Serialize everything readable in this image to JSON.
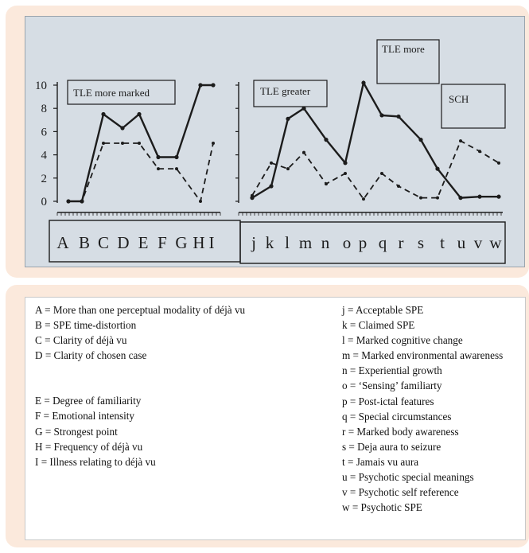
{
  "chart_data": {
    "type": "line",
    "panels": [
      {
        "categories": [
          "A",
          "B",
          "C",
          "D",
          "E",
          "F",
          "G",
          "H",
          "I"
        ],
        "y_ticks": [
          0,
          2,
          4,
          6,
          8,
          10
        ],
        "ylim": [
          0,
          10
        ],
        "annotations": [
          "TLE more marked"
        ],
        "series": [
          {
            "style": "solid",
            "values": [
              0,
              0,
              7.5,
              6.3,
              7.5,
              3.8,
              3.8,
              10,
              10
            ]
          },
          {
            "style": "dashed",
            "values": [
              0,
              0,
              5,
              5,
              5,
              2.8,
              2.8,
              0,
              5
            ]
          }
        ]
      },
      {
        "categories": [
          "j",
          "k",
          "l",
          "m",
          "n",
          "o",
          "p",
          "q",
          "r",
          "s",
          "t",
          "u",
          "v",
          "w"
        ],
        "ylim": [
          0,
          10
        ],
        "annotations": [
          "TLE greater",
          "TLE more marked",
          "SCH greater"
        ],
        "series": [
          {
            "style": "solid",
            "values": [
              0.3,
              1.3,
              7.1,
              8.0,
              5.3,
              3.3,
              10.2,
              7.4,
              7.3,
              5.3,
              2.8,
              0.3,
              0.4,
              0.4
            ]
          },
          {
            "style": "dashed",
            "values": [
              0.5,
              3.3,
              2.8,
              4.2,
              1.5,
              2.4,
              0.2,
              2.4,
              1.3,
              0.3,
              0.3,
              5.2,
              4.3,
              3.3
            ]
          }
        ]
      }
    ]
  },
  "legend": {
    "left": [
      "A = More than one perceptual modality of déjà vu",
      "B = SPE time-distortion",
      "C = Clarity of déjà vu",
      "D = Clarity of chosen case",
      "",
      "E = Degree of familiarity",
      "F = Emotional intensity",
      "G = Strongest point",
      "H = Frequency of déjà vu",
      "I = Illness relating to déjà vu"
    ],
    "right": [
      "j = Acceptable SPE",
      "k = Claimed SPE",
      "l = Marked cognitive change",
      "m = Marked environmental awareness",
      "n = Experiential growth",
      "o = ‘Sensing’ familiarty",
      "p = Post-ictal features",
      "q = Special circumstances",
      "r = Marked body awareness",
      "s = Deja aura to seizure",
      "t = Jamais vu aura",
      "u = Psychotic special meanings",
      "v = Psychotic self reference",
      "w = Psychotic SPE"
    ]
  },
  "colors": {
    "panel_bg": "#fbe9dc",
    "photo_bg": "#d6dde4",
    "ink": "#1c1c1c"
  }
}
